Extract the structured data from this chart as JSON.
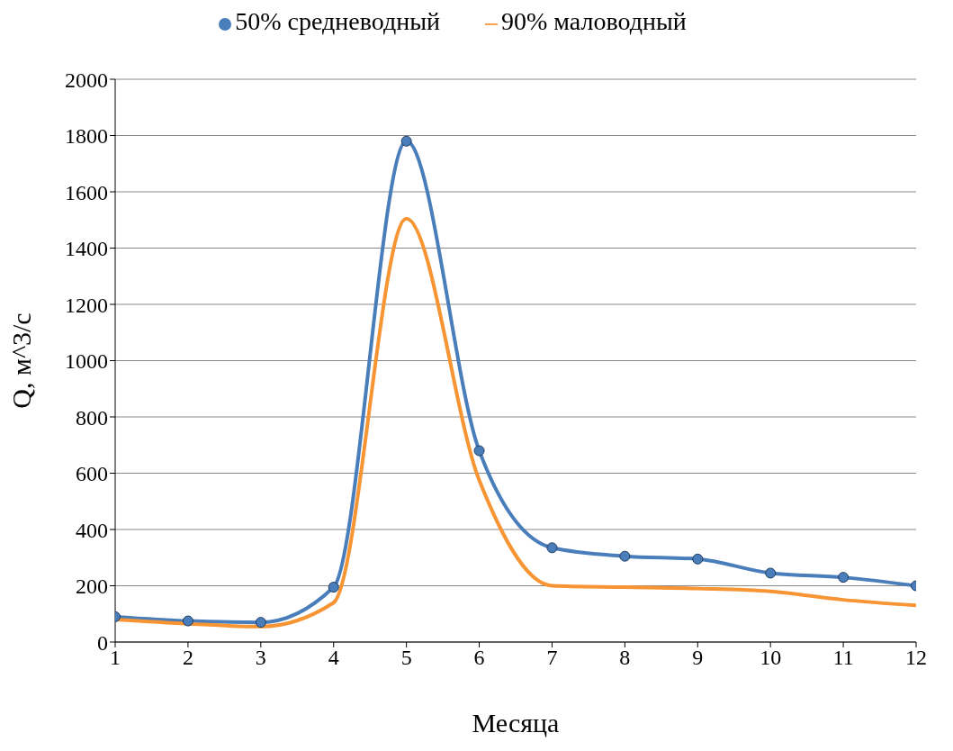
{
  "chart_data": {
    "type": "line",
    "xlabel": "Месяца",
    "ylabel": "Q, м^3/с",
    "x": [
      1,
      2,
      3,
      4,
      5,
      6,
      7,
      8,
      9,
      10,
      11,
      12
    ],
    "series": [
      {
        "name": "50% средневодный",
        "color": "#4a7ebb",
        "marker": "circle",
        "values": [
          90,
          75,
          70,
          195,
          1780,
          680,
          335,
          305,
          295,
          245,
          230,
          200
        ]
      },
      {
        "name": "90% маловодный",
        "color": "#f79433",
        "marker": "none",
        "values": [
          80,
          65,
          55,
          140,
          1505,
          575,
          200,
          195,
          190,
          180,
          150,
          130
        ]
      }
    ],
    "xlim": [
      1,
      12
    ],
    "xticks": [
      1,
      2,
      3,
      4,
      5,
      6,
      7,
      8,
      9,
      10,
      11,
      12
    ],
    "ylim": [
      0,
      2000
    ],
    "yticks": [
      0,
      200,
      400,
      600,
      800,
      1000,
      1200,
      1400,
      1600,
      1800,
      2000
    ],
    "grid": "y",
    "legend": "top"
  }
}
